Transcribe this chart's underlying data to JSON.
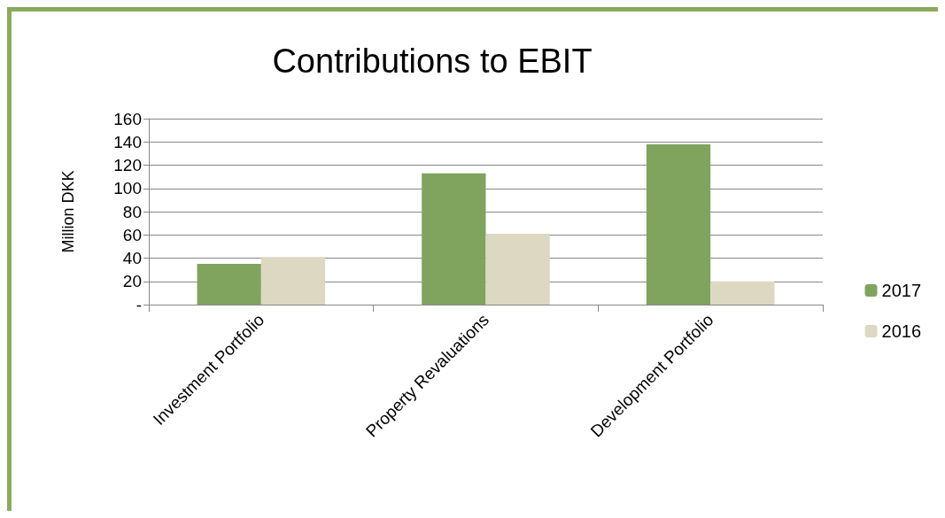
{
  "chart_data": {
    "type": "bar",
    "title": "Contributions to EBIT",
    "ylabel": "Million DKK",
    "categories": [
      "Investment Portfolio",
      "Property Revaluations",
      "Development Portfolio"
    ],
    "series": [
      {
        "name": "2017",
        "color": "#80a35e",
        "values": [
          35,
          113,
          138
        ]
      },
      {
        "name": "2016",
        "color": "#ddd8c2",
        "values": [
          41,
          61,
          20
        ]
      }
    ],
    "ylim": [
      0,
      160
    ],
    "yticks": [
      {
        "value": 0,
        "label": "-"
      },
      20,
      40,
      60,
      80,
      100,
      120,
      140,
      160
    ],
    "grid": "y",
    "legend": "right"
  }
}
